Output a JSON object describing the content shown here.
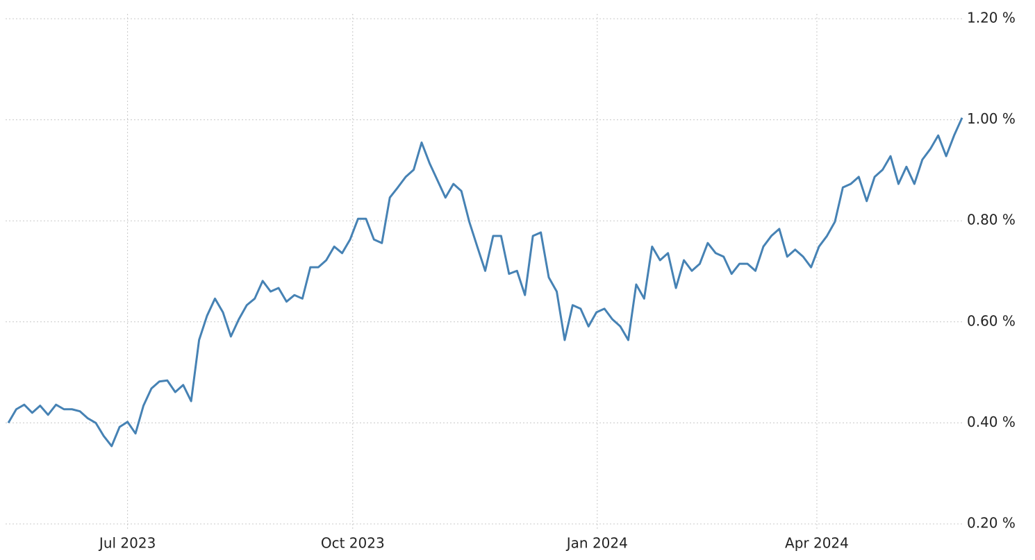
{
  "chart_data": {
    "type": "line",
    "series": [
      {
        "color": "#4682b4",
        "values": [
          0.4,
          0.427,
          0.436,
          0.42,
          0.434,
          0.416,
          0.436,
          0.427,
          0.427,
          0.423,
          0.409,
          0.4,
          0.374,
          0.354,
          0.392,
          0.402,
          0.379,
          0.434,
          0.468,
          0.482,
          0.484,
          0.461,
          0.475,
          0.443,
          0.564,
          0.612,
          0.646,
          0.619,
          0.571,
          0.605,
          0.633,
          0.646,
          0.681,
          0.66,
          0.667,
          0.64,
          0.653,
          0.646,
          0.708,
          0.708,
          0.722,
          0.749,
          0.736,
          0.763,
          0.804,
          0.804,
          0.763,
          0.756,
          0.846,
          0.866,
          0.887,
          0.901,
          0.955,
          0.914,
          0.88,
          0.846,
          0.873,
          0.859,
          0.798,
          0.749,
          0.701,
          0.77,
          0.77,
          0.695,
          0.701,
          0.653,
          0.77,
          0.777,
          0.688,
          0.66,
          0.564,
          0.633,
          0.626,
          0.591,
          0.619,
          0.626,
          0.605,
          0.591,
          0.564,
          0.674,
          0.646,
          0.749,
          0.722,
          0.736,
          0.667,
          0.722,
          0.701,
          0.715,
          0.756,
          0.736,
          0.729,
          0.695,
          0.715,
          0.715,
          0.701,
          0.749,
          0.77,
          0.784,
          0.729,
          0.743,
          0.729,
          0.708,
          0.749,
          0.77,
          0.798,
          0.866,
          0.873,
          0.887,
          0.839,
          0.887,
          0.901,
          0.928,
          0.873,
          0.907,
          0.873,
          0.921,
          0.942,
          0.969,
          0.928,
          0.969,
          1.004
        ]
      }
    ],
    "xlim": [
      0,
      120
    ],
    "xticks": [
      {
        "value": 15,
        "label": "Jul 2023"
      },
      {
        "value": 43.33,
        "label": "Oct 2023"
      },
      {
        "value": 74.1,
        "label": "Jan 2024"
      },
      {
        "value": 101.73,
        "label": "Apr 2024"
      }
    ],
    "ylim": [
      0.2,
      1.2
    ],
    "yticks": [
      {
        "value": 0.2,
        "label": "0.20 %"
      },
      {
        "value": 0.4,
        "label": "0.40 %"
      },
      {
        "value": 0.6,
        "label": "0.60 %"
      },
      {
        "value": 0.8,
        "label": "0.80 %"
      },
      {
        "value": 1.0,
        "label": "1.00 %"
      },
      {
        "value": 1.2,
        "label": "1.20 %"
      }
    ],
    "grid": true
  }
}
